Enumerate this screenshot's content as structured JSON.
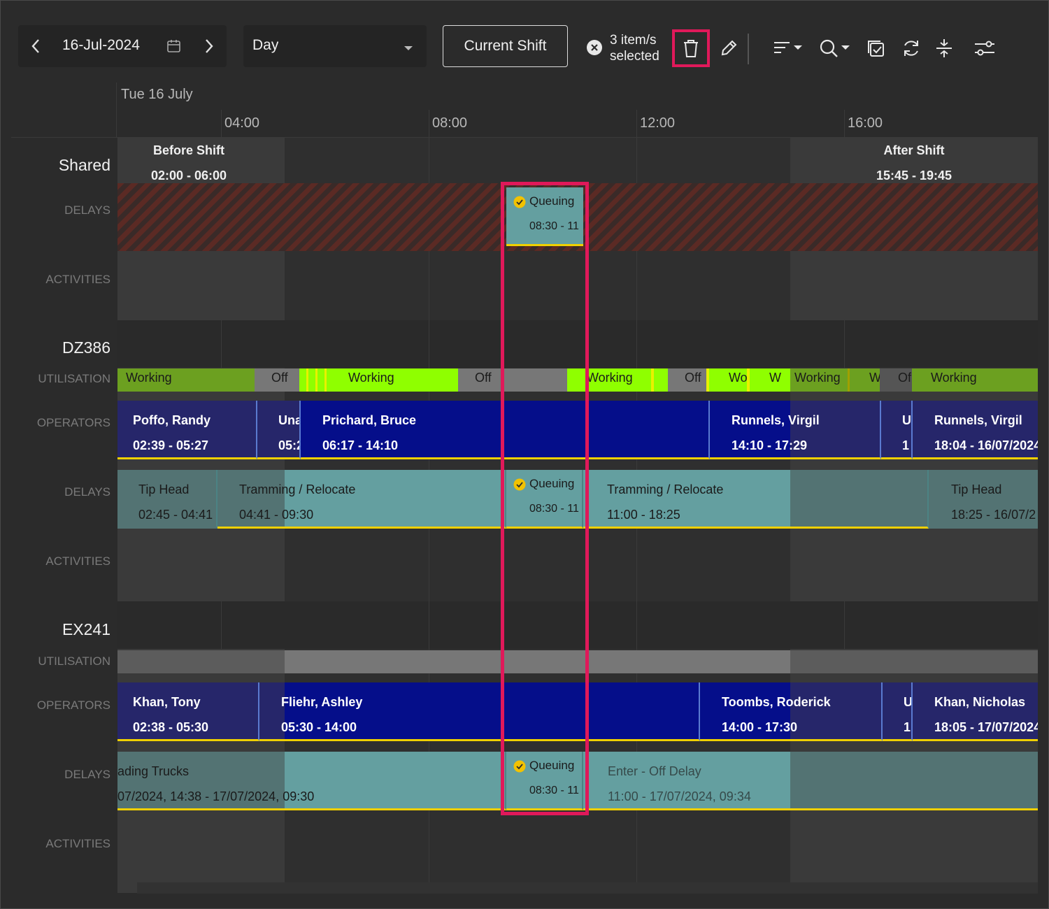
{
  "toolbar": {
    "date": "16-Jul-2024",
    "view_mode": "Day",
    "current_shift_label": "Current Shift",
    "selection_line1": "3 item/s",
    "selection_line2": "selected"
  },
  "timeline": {
    "date_heading": "Tue 16 July",
    "hours": [
      "04:00",
      "08:00",
      "12:00",
      "16:00"
    ]
  },
  "shifts": {
    "before": {
      "name": "Before Shift",
      "time": "02:00 - 06:00"
    },
    "after": {
      "name": "After Shift",
      "time": "15:45 - 19:45"
    }
  },
  "row_labels": {
    "delays": "DELAYS",
    "activities": "ACTIVITIES",
    "utilisation": "UTILISATION",
    "operators": "OPERATORS"
  },
  "resources": [
    {
      "name": "Shared"
    },
    {
      "name": "DZ386"
    },
    {
      "name": "EX241"
    }
  ],
  "shared_delay": {
    "name": "Queuing",
    "time": "08:30 - 11"
  },
  "dz386": {
    "utilisation": [
      "Working",
      "Off",
      "Working",
      "Off",
      "Working",
      "Off",
      "Wo",
      "W",
      "Working",
      "W",
      "Of",
      "Working"
    ],
    "operators": [
      {
        "name": "Poffo, Randy",
        "time": "02:39 - 05:27"
      },
      {
        "name": "Una",
        "time": "05:2"
      },
      {
        "name": "Prichard, Bruce",
        "time": "06:17 - 14:10"
      },
      {
        "name": "Runnels, Virgil",
        "time": "14:10 - 17:29"
      },
      {
        "name": "U",
        "time": "1"
      },
      {
        "name": "Runnels, Virgil",
        "time": "18:04 - 16/07/2024"
      }
    ],
    "delays": [
      {
        "name": "Tip Head",
        "time": "02:45 - 04:41"
      },
      {
        "name": "Tramming / Relocate",
        "time": "04:41 - 09:30"
      },
      {
        "name": "Queuing",
        "time": "08:30 - 11"
      },
      {
        "name": "Tramming / Relocate",
        "time": "11:00 - 18:25"
      },
      {
        "name": "Tip Head",
        "time": "18:25 - 16/07/2"
      }
    ]
  },
  "ex241": {
    "operators": [
      {
        "name": "Khan, Tony",
        "time": "02:38 - 05:30"
      },
      {
        "name": "Fliehr, Ashley",
        "time": "05:30 - 14:00"
      },
      {
        "name": "Toombs, Roderick",
        "time": "14:00 - 17:30"
      },
      {
        "name": "U",
        "time": "1"
      },
      {
        "name": "Khan, Nicholas",
        "time": "18:05 - 17/07/2024"
      }
    ],
    "delays": [
      {
        "name": "ading Trucks",
        "time": "07/2024, 14:38 - 17/07/2024, 09:30"
      },
      {
        "name": "Queuing",
        "time": "08:30 - 11"
      },
      {
        "name": "Enter - Off Delay",
        "time": "11:00 - 17/07/2024, 09:34"
      }
    ]
  },
  "colors": {
    "accent": "#e0195a",
    "operator": "#050e8a",
    "delay": "#649fa0",
    "working": "#8fff00",
    "off": "#777777",
    "border_highlight": "#f0d000"
  }
}
